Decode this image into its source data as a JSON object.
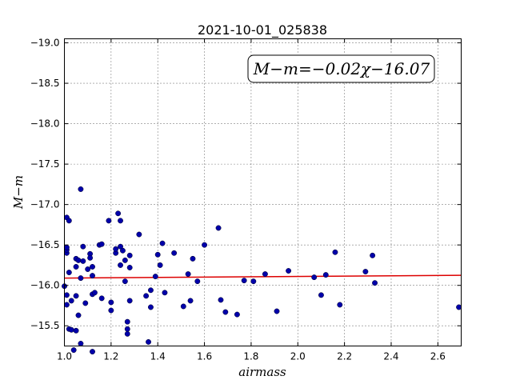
{
  "chart_data": {
    "type": "scatter",
    "title": "2021-10-01_025838",
    "xlabel": "airmass",
    "ylabel": "M−m",
    "xlim": [
      1.0,
      2.7
    ],
    "ylim": [
      -19.05,
      -15.25
    ],
    "y_inverted": true,
    "grid": true,
    "x_ticks": [
      1.0,
      1.2,
      1.4,
      1.6,
      1.8,
      2.0,
      2.2,
      2.4,
      2.6
    ],
    "x_tick_labels": [
      "1.0",
      "1.2",
      "1.4",
      "1.6",
      "1.8",
      "2.0",
      "2.2",
      "2.4",
      "2.6"
    ],
    "y_ticks": [
      -15.5,
      -16.0,
      -16.5,
      -17.0,
      -17.5,
      -18.0,
      -18.5,
      -19.0
    ],
    "y_tick_labels": [
      "−15.5",
      "−16.0",
      "−16.5",
      "−17.0",
      "−17.5",
      "−18.0",
      "−18.5",
      "−19.0"
    ],
    "annotation": "M−m=−0.02χ−16.07",
    "annotation_placement": "top-right",
    "point_color": "#0000aa",
    "line_color": "#dd0000",
    "fit_line": {
      "slope": -0.02,
      "intercept": -16.07
    },
    "points": [
      [
        1.0,
        -15.99
      ],
      [
        1.01,
        -15.76
      ],
      [
        1.01,
        -15.88
      ],
      [
        1.01,
        -16.4
      ],
      [
        1.01,
        -16.44
      ],
      [
        1.01,
        -16.47
      ],
      [
        1.01,
        -16.84
      ],
      [
        1.02,
        -16.8
      ],
      [
        1.02,
        -15.46
      ],
      [
        1.02,
        -16.16
      ],
      [
        1.03,
        -15.45
      ],
      [
        1.03,
        -15.81
      ],
      [
        1.04,
        -15.2
      ],
      [
        1.05,
        -16.33
      ],
      [
        1.05,
        -16.23
      ],
      [
        1.05,
        -15.44
      ],
      [
        1.05,
        -15.87
      ],
      [
        1.06,
        -15.63
      ],
      [
        1.06,
        -16.31
      ],
      [
        1.07,
        -15.28
      ],
      [
        1.07,
        -16.09
      ],
      [
        1.07,
        -17.19
      ],
      [
        1.08,
        -16.3
      ],
      [
        1.08,
        -16.48
      ],
      [
        1.09,
        -15.78
      ],
      [
        1.1,
        -16.2
      ],
      [
        1.11,
        -16.39
      ],
      [
        1.11,
        -16.34
      ],
      [
        1.12,
        -15.18
      ],
      [
        1.12,
        -15.89
      ],
      [
        1.12,
        -16.12
      ],
      [
        1.12,
        -16.23
      ],
      [
        1.13,
        -15.91
      ],
      [
        1.15,
        -16.5
      ],
      [
        1.16,
        -16.51
      ],
      [
        1.16,
        -15.84
      ],
      [
        1.19,
        -16.8
      ],
      [
        1.2,
        -15.69
      ],
      [
        1.2,
        -15.79
      ],
      [
        1.22,
        -16.4
      ],
      [
        1.22,
        -16.45
      ],
      [
        1.23,
        -16.89
      ],
      [
        1.24,
        -16.8
      ],
      [
        1.24,
        -16.25
      ],
      [
        1.24,
        -16.48
      ],
      [
        1.25,
        -16.43
      ],
      [
        1.26,
        -16.05
      ],
      [
        1.26,
        -16.31
      ],
      [
        1.27,
        -15.55
      ],
      [
        1.27,
        -15.4
      ],
      [
        1.27,
        -15.46
      ],
      [
        1.28,
        -15.81
      ],
      [
        1.28,
        -16.37
      ],
      [
        1.28,
        -16.22
      ],
      [
        1.32,
        -16.63
      ],
      [
        1.35,
        -15.87
      ],
      [
        1.36,
        -15.3
      ],
      [
        1.37,
        -15.73
      ],
      [
        1.37,
        -15.94
      ],
      [
        1.39,
        -16.11
      ],
      [
        1.4,
        -16.38
      ],
      [
        1.41,
        -16.25
      ],
      [
        1.42,
        -16.52
      ],
      [
        1.43,
        -15.91
      ],
      [
        1.47,
        -16.4
      ],
      [
        1.51,
        -15.74
      ],
      [
        1.53,
        -16.14
      ],
      [
        1.54,
        -15.81
      ],
      [
        1.55,
        -16.33
      ],
      [
        1.57,
        -16.05
      ],
      [
        1.6,
        -16.5
      ],
      [
        1.66,
        -16.71
      ],
      [
        1.67,
        -15.82
      ],
      [
        1.69,
        -15.67
      ],
      [
        1.74,
        -15.64
      ],
      [
        1.77,
        -16.06
      ],
      [
        1.81,
        -16.05
      ],
      [
        1.86,
        -16.14
      ],
      [
        1.91,
        -15.68
      ],
      [
        1.96,
        -16.18
      ],
      [
        2.07,
        -16.1
      ],
      [
        2.1,
        -15.88
      ],
      [
        2.12,
        -16.13
      ],
      [
        2.16,
        -16.41
      ],
      [
        2.18,
        -15.76
      ],
      [
        2.29,
        -16.17
      ],
      [
        2.32,
        -16.37
      ],
      [
        2.33,
        -16.03
      ],
      [
        2.69,
        -15.73
      ]
    ]
  }
}
